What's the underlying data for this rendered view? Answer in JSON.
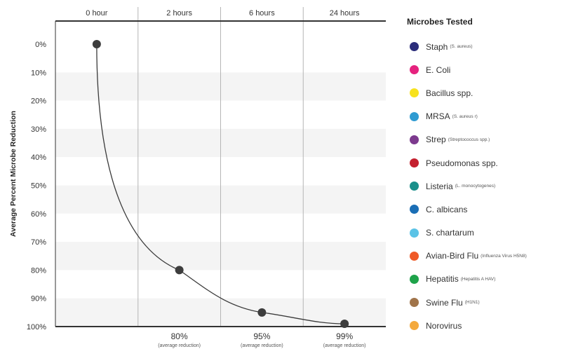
{
  "chart_data": {
    "type": "line",
    "xlabel": "",
    "ylabel": "Average Percent Microbe Reduction",
    "categories": [
      "0 hour",
      "2 hours",
      "6 hours",
      "24 hours"
    ],
    "y_ticks": [
      "0%",
      "10%",
      "20%",
      "30%",
      "40%",
      "50%",
      "60%",
      "70%",
      "80%",
      "90%",
      "100%"
    ],
    "ylim": [
      0,
      100
    ],
    "y_inverted": true,
    "grid": "vertical",
    "series": [
      {
        "values": [
          0,
          80,
          95,
          99
        ],
        "color": "#555555"
      }
    ],
    "data_labels": [
      {
        "category": "2 hours",
        "value": "80%",
        "note": "(average reduction)"
      },
      {
        "category": "6 hours",
        "value": "95%",
        "note": "(average reduction)"
      },
      {
        "category": "24 hours",
        "value": "99%",
        "note": "(average reduction)"
      }
    ]
  },
  "legend": {
    "title": "Microbes Tested",
    "placement": "right",
    "items": [
      {
        "name": "Staph",
        "sub": "(S. aureus)",
        "color": "#2b2d7a"
      },
      {
        "name": "E. Coli",
        "sub": "",
        "color": "#e5227e"
      },
      {
        "name": "Bacillus spp.",
        "sub": "",
        "color": "#f7e21e"
      },
      {
        "name": "MRSA",
        "sub": "(S. aureus r)",
        "color": "#2f9bd2"
      },
      {
        "name": "Strep",
        "sub": "(Streptococcus spp.)",
        "color": "#7c3a8e"
      },
      {
        "name": "Pseudomonas spp.",
        "sub": "",
        "color": "#c4202f"
      },
      {
        "name": "Listeria",
        "sub": "(L. monocytogenes)",
        "color": "#1a8f8a"
      },
      {
        "name": "C. albicans",
        "sub": "",
        "color": "#1a6eb5"
      },
      {
        "name": "S. chartarum",
        "sub": "",
        "color": "#5bc3e6"
      },
      {
        "name": "Avian-Bird Flu",
        "sub": "(Influenza Virus H5N8)",
        "color": "#ef5a27"
      },
      {
        "name": "Hepatitis",
        "sub": "(Hepatitis A HAV)",
        "color": "#1ea34a"
      },
      {
        "name": "Swine Flu",
        "sub": "(H1N1)",
        "color": "#a0744a"
      },
      {
        "name": "Norovirus",
        "sub": "",
        "color": "#f4a93c"
      }
    ]
  }
}
